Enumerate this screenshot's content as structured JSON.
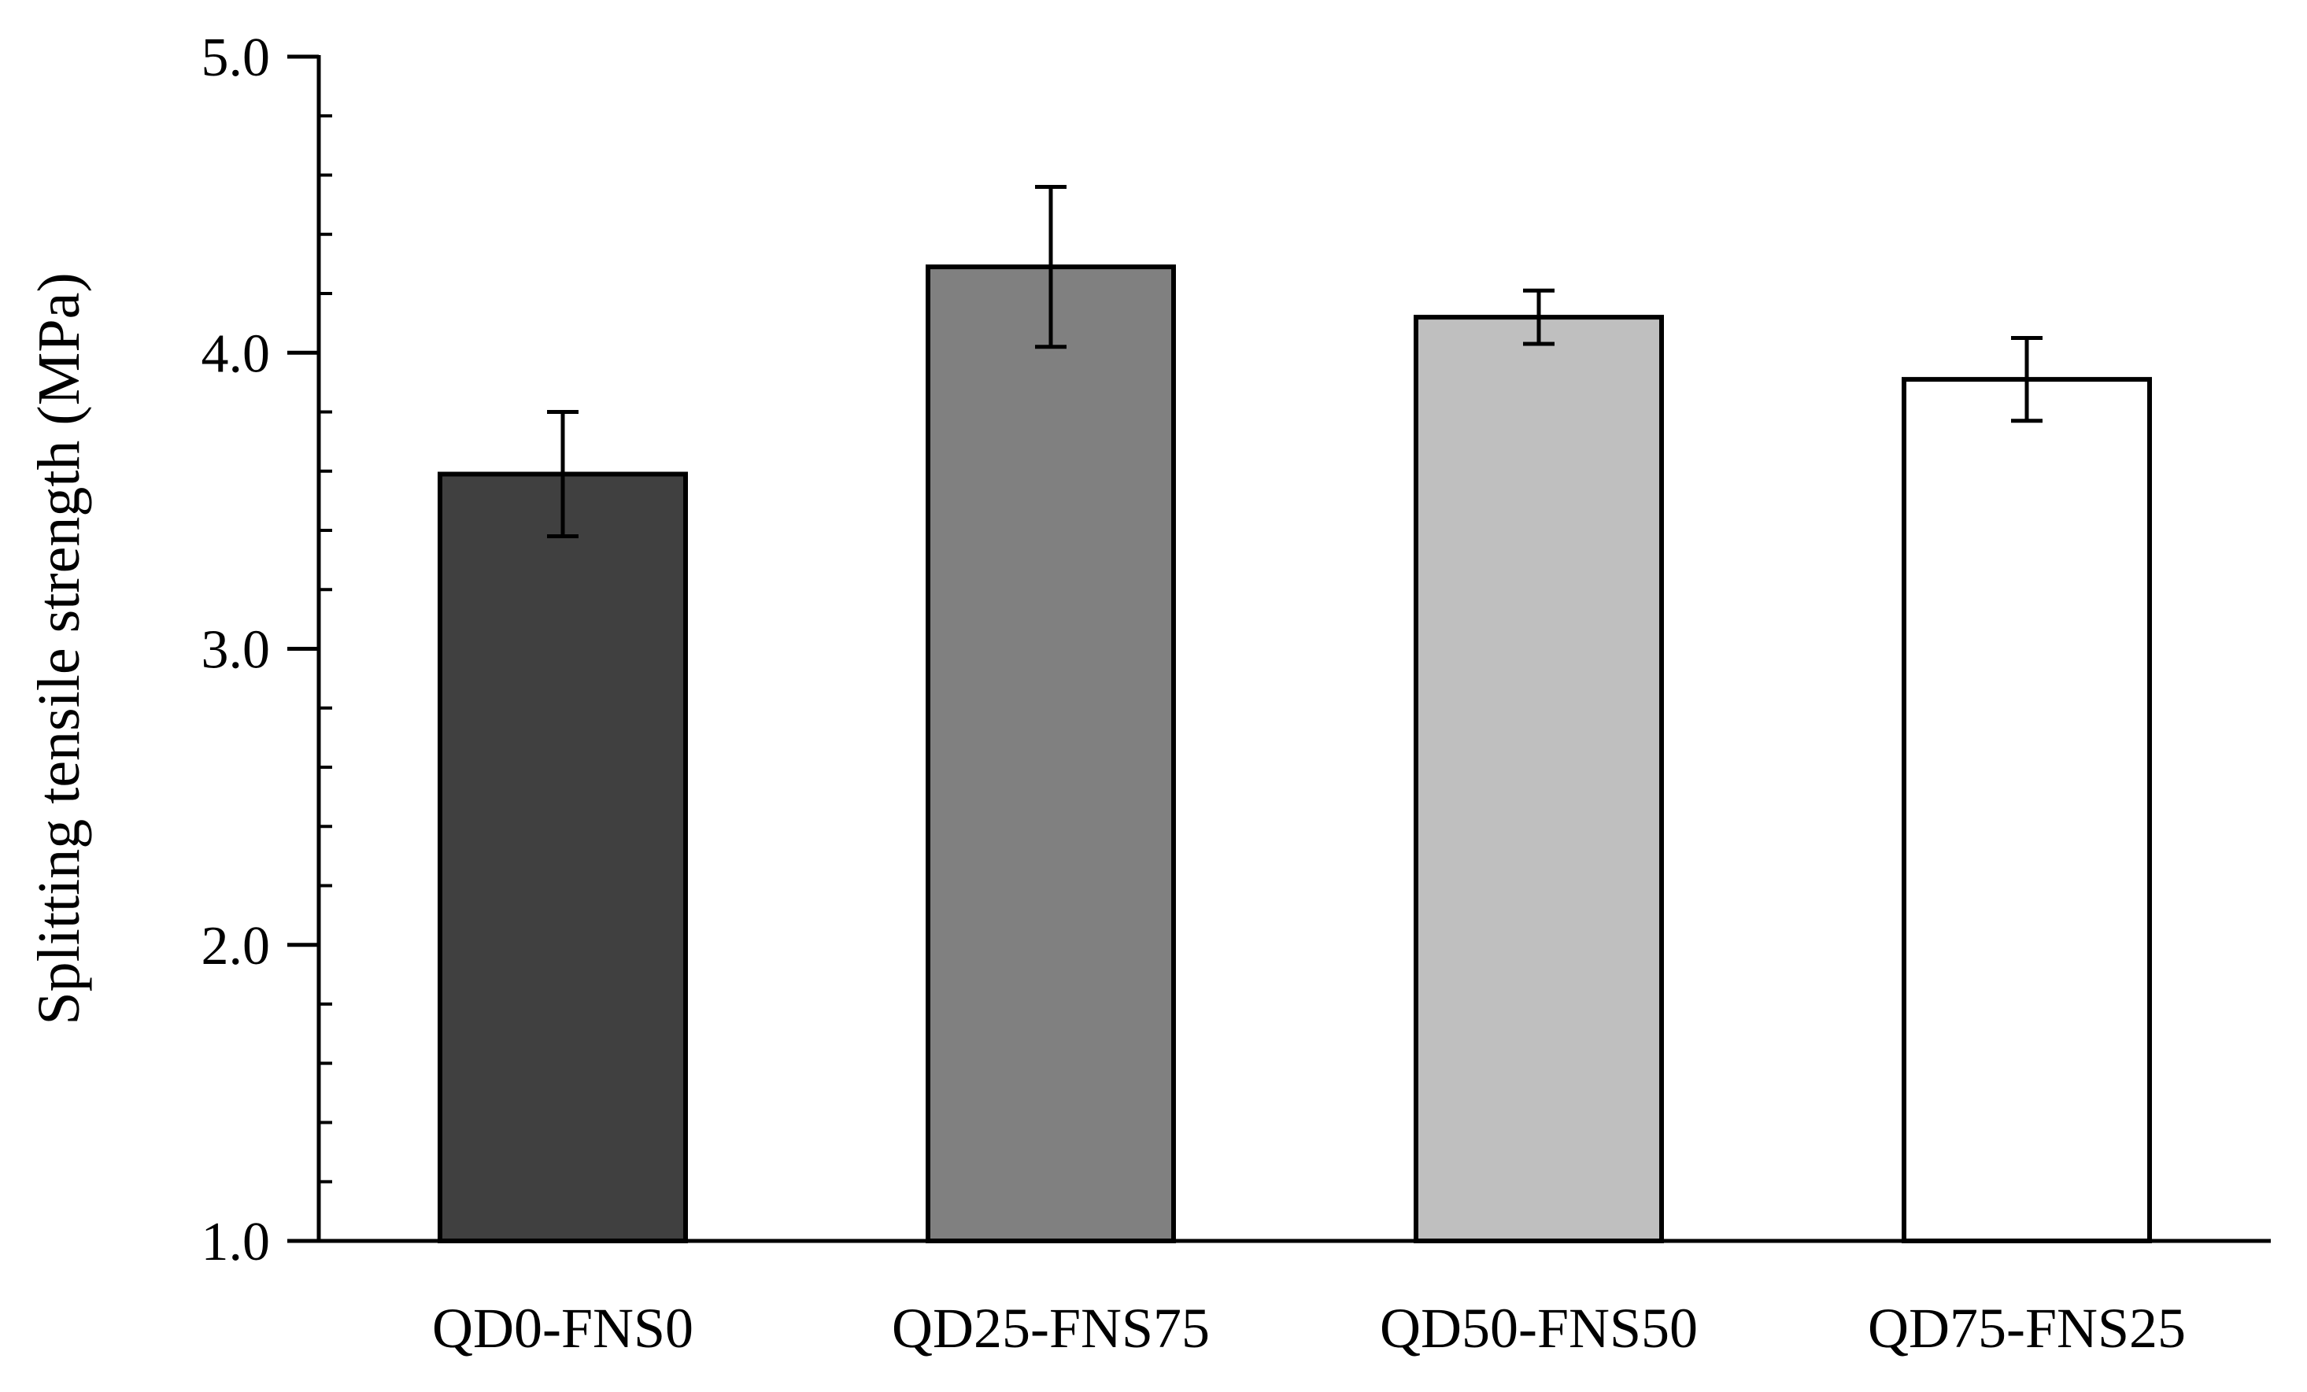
{
  "chart_data": {
    "type": "bar",
    "title": "",
    "xlabel": "",
    "ylabel": "Splitting tensile strength (MPa)",
    "categories": [
      "QD0-FNS0",
      "QD25-FNS75",
      "QD50-FNS50",
      "QD75-FNS25"
    ],
    "values": [
      3.59,
      4.29,
      4.12,
      3.91
    ],
    "errors": [
      0.21,
      0.27,
      0.09,
      0.14
    ],
    "bar_colors": [
      "#404040",
      "#808080",
      "#bfbfbf",
      "#ffffff"
    ],
    "ylim": [
      1.0,
      5.0
    ],
    "yticks": [
      1.0,
      2.0,
      3.0,
      4.0,
      5.0
    ],
    "ytick_labels": [
      "1.0",
      "2.0",
      "3.0",
      "4.0",
      "5.0"
    ],
    "minor_tick_step": 0.2,
    "grid": false,
    "legend": "none"
  }
}
